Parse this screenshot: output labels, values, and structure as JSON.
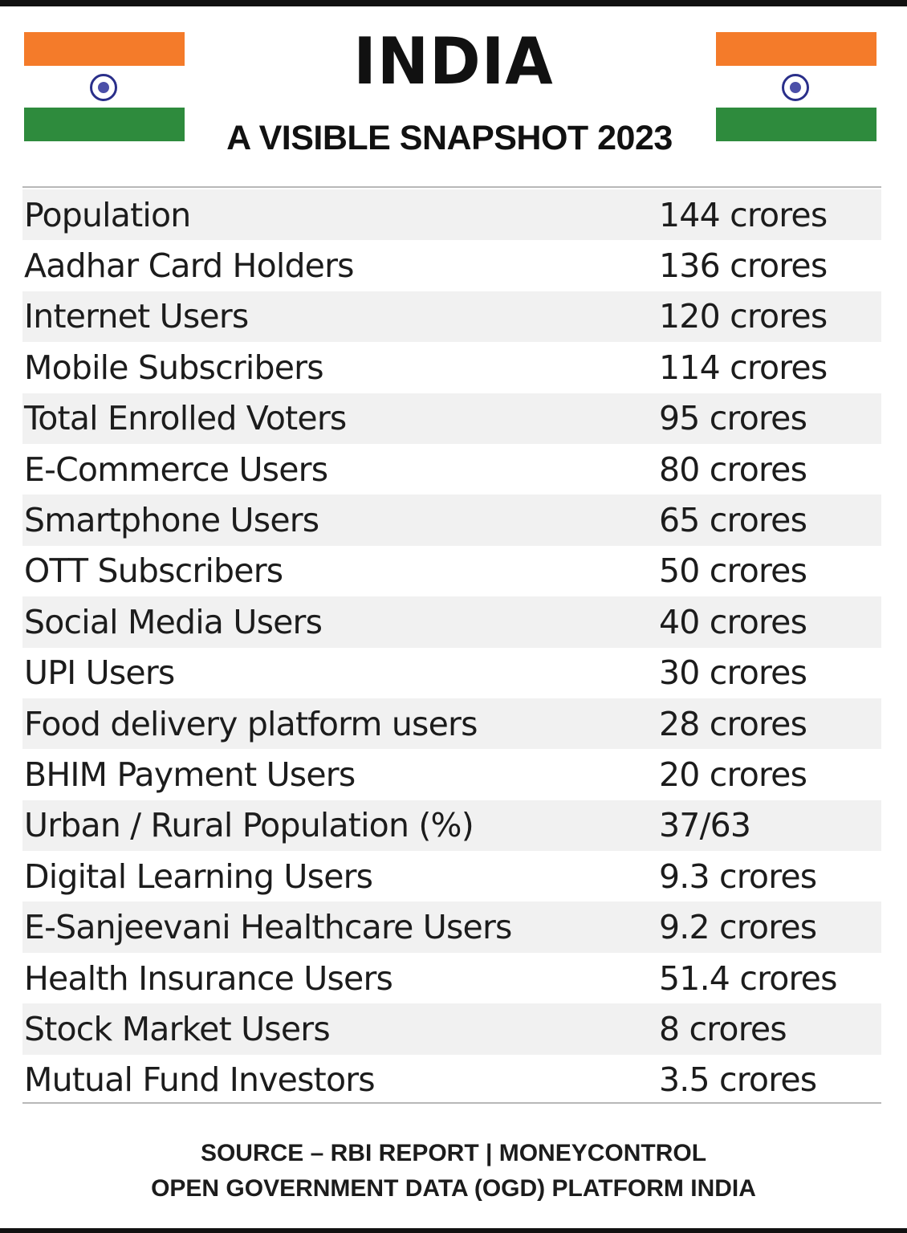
{
  "header": {
    "title": "INDIA",
    "subtitle": "A VISIBLE SNAPSHOT 2023",
    "flag_colors": {
      "saffron": "#f47b2a",
      "white": "#ffffff",
      "green": "#2e8b3d",
      "chakra": "#2a2f8a"
    }
  },
  "rows": [
    {
      "label": "Population",
      "value": "144 crores"
    },
    {
      "label": "Aadhar Card Holders",
      "value": "136 crores"
    },
    {
      "label": "Internet Users",
      "value": "120 crores"
    },
    {
      "label": "Mobile Subscribers",
      "value": "114 crores"
    },
    {
      "label": "Total Enrolled Voters",
      "value": "95 crores"
    },
    {
      "label": "E-Commerce Users",
      "value": "80 crores"
    },
    {
      "label": "Smartphone Users",
      "value": "65 crores"
    },
    {
      "label": "OTT Subscribers",
      "value": "50 crores"
    },
    {
      "label": "Social Media Users",
      "value": "40 crores"
    },
    {
      "label": "UPI Users",
      "value": "30 crores"
    },
    {
      "label": "Food delivery platform users",
      "value": "28 crores"
    },
    {
      "label": "BHIM Payment Users",
      "value": "20 crores"
    },
    {
      "label": "Urban / Rural Population (%)",
      "value": "37/63"
    },
    {
      "label": "Digital Learning Users",
      "value": "9.3 crores"
    },
    {
      "label": "E-Sanjeevani Healthcare Users",
      "value": "9.2 crores"
    },
    {
      "label": "Health Insurance Users",
      "value": "51.4 crores"
    },
    {
      "label": "Stock Market Users",
      "value": "8 crores"
    },
    {
      "label": "Mutual Fund Investors",
      "value": "3.5 crores"
    }
  ],
  "footer": {
    "line1": "SOURCE – RBI REPORT | MONEYCONTROL",
    "line2": "OPEN GOVERNMENT DATA (OGD) PLATFORM INDIA"
  }
}
